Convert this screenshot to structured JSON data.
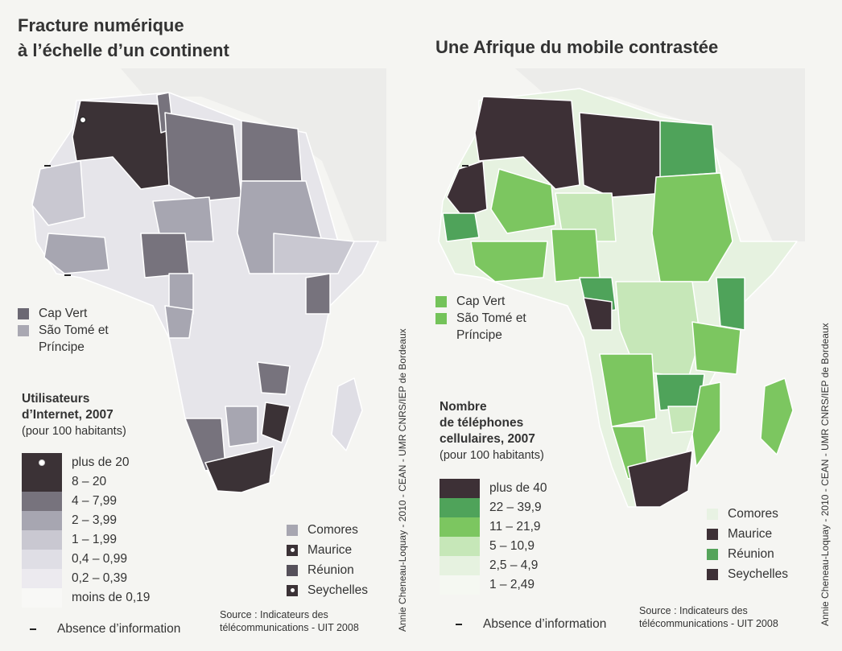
{
  "left": {
    "title_line1": "Fracture numérique",
    "title_line2": "à l’échelle d’un continent",
    "islands": [
      {
        "label": "Cap Vert",
        "color": "#6b6873"
      },
      {
        "label": "São Tomé et",
        "color": "#a9a8b2"
      }
    ],
    "island_cont": "Príncipe",
    "legend_title1": "Utilisateurs",
    "legend_title2": "d’Internet, 2007",
    "legend_sub": "(pour 100 habitants)",
    "classes": [
      {
        "label": "plus de 20",
        "color": "#3b3236",
        "dot": true
      },
      {
        "label": "8 – 20",
        "color": "#3b3236"
      },
      {
        "label": "4 – 7,99",
        "color": "#77737d"
      },
      {
        "label": "2 – 3,99",
        "color": "#a7a6b1"
      },
      {
        "label": "1 – 1,99",
        "color": "#c9c8d1"
      },
      {
        "label": "0,4 – 0,99",
        "color": "#dfdee5"
      },
      {
        "label": "0,2 – 0,39",
        "color": "#eceaef"
      },
      {
        "label": "moins de 0,19",
        "color": "#f8f8f6"
      }
    ],
    "no_info": "Absence d’information",
    "small_islands": [
      {
        "label": "Comores",
        "color": "#a7a6b1",
        "dot": false
      },
      {
        "label": "Maurice",
        "color": "#3b3236",
        "dot": true
      },
      {
        "label": "Réunion",
        "color": "#55505a",
        "dot": false
      },
      {
        "label": "Seychelles",
        "color": "#3b3236",
        "dot": true
      }
    ],
    "source1": "Source : Indicateurs des",
    "source2": "télécommunications - UIT 2008",
    "credit": "Annie Cheneau-Loquay - 2010 - CEAN - UMR CNRS/IEP de Bordeaux"
  },
  "right": {
    "title": "Une Afrique du mobile contrastée",
    "islands": [
      {
        "label": "Cap Vert",
        "color": "#74c35a"
      },
      {
        "label": "São Tomé et",
        "color": "#74c35a"
      }
    ],
    "island_cont": "Príncipe",
    "legend_title1": "Nombre",
    "legend_title2": "de téléphones",
    "legend_title3": "cellulaires, 2007",
    "legend_sub": "(pour 100 habitants)",
    "classes": [
      {
        "label": "plus de 40",
        "color": "#3d3036"
      },
      {
        "label": "22 – 39,9",
        "color": "#4fa35a"
      },
      {
        "label": "11 – 21,9",
        "color": "#7cc660"
      },
      {
        "label": "5 – 10,9",
        "color": "#c6e7b8"
      },
      {
        "label": "2,5 – 4,9",
        "color": "#e6f2e0"
      },
      {
        "label": "1 – 2,49",
        "color": "#f5f8f2"
      }
    ],
    "no_info": "Absence d’information",
    "small_islands": [
      {
        "label": "Comores",
        "color": "#e8f2e3"
      },
      {
        "label": "Maurice",
        "color": "#3d3036"
      },
      {
        "label": "Réunion",
        "color": "#55a35a"
      },
      {
        "label": "Seychelles",
        "color": "#3d3036"
      }
    ],
    "source1": "Source : Indicateurs des",
    "source2": "télécommunications - UIT 2008",
    "credit": "Annie Cheneau-Loquay - 2010 - CEAN - UMR CNRS/IEP de Bordeaux"
  }
}
